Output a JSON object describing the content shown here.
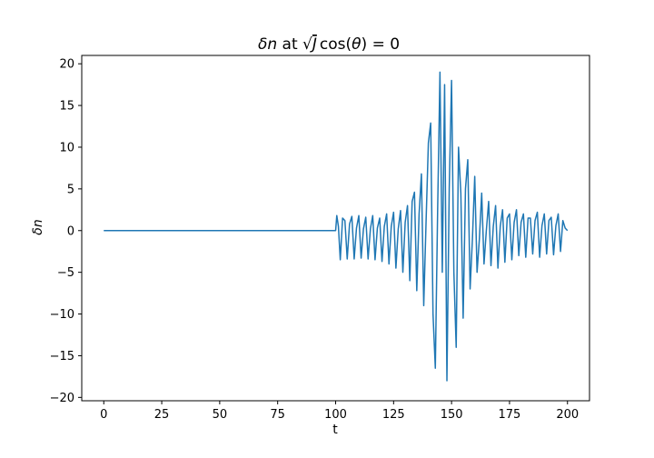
{
  "chart_data": {
    "type": "line",
    "title": "δn at √J cos(θ) = 0",
    "title_parts": {
      "var": "δn",
      "at": " at ",
      "sqrt_arg": "J",
      "cos": "cos(",
      "theta": "θ",
      "rest": ") = 0"
    },
    "xlabel": "t",
    "ylabel": "δn",
    "xlim": [
      -9.5,
      209.5
    ],
    "ylim": [
      -20.4,
      21.0
    ],
    "xticks": [
      0,
      25,
      50,
      75,
      100,
      125,
      150,
      175,
      200
    ],
    "yticks": [
      -20,
      -15,
      -10,
      -5,
      0,
      5,
      10,
      15,
      20
    ],
    "grid": false,
    "color": "#1f77b4",
    "series": [
      {
        "x": [
          0,
          100,
          100.5,
          101.2,
          102,
          103,
          104,
          105,
          106,
          107,
          108,
          109,
          110,
          111,
          112,
          113,
          114,
          115,
          116,
          117,
          118,
          119,
          120,
          121,
          122,
          123,
          124,
          125,
          126,
          127,
          128,
          129,
          130,
          131,
          132,
          133,
          134,
          135,
          136,
          137,
          138,
          139,
          140,
          141,
          142,
          143,
          144,
          145,
          146,
          147,
          148,
          149,
          150,
          151,
          152,
          153,
          154,
          155,
          156,
          157,
          158,
          159,
          160,
          161,
          162,
          163,
          164,
          165,
          166,
          167,
          168,
          169,
          170,
          171,
          172,
          173,
          174,
          175,
          176,
          177,
          178,
          179,
          180,
          181,
          182,
          183,
          184,
          185,
          186,
          187,
          188,
          189,
          190,
          191,
          192,
          193,
          194,
          195,
          196,
          197,
          198,
          199,
          200
        ],
        "y": [
          0,
          0,
          1.8,
          0.5,
          -3.5,
          1.5,
          1.2,
          -3.4,
          0.8,
          1.7,
          -3.4,
          0.3,
          1.8,
          -3.3,
          0.2,
          1.6,
          -3.4,
          0.2,
          1.8,
          -3.5,
          0.3,
          1.5,
          -3.7,
          0.5,
          2.0,
          -4.0,
          0.5,
          2.2,
          -4.5,
          0.2,
          2.4,
          -5.0,
          1.0,
          3.0,
          -6.0,
          3.5,
          4.6,
          -7.2,
          2.0,
          6.8,
          -9.0,
          1.0,
          10.5,
          12.9,
          -10.0,
          -16.5,
          2.5,
          19.0,
          -5.0,
          17.5,
          -18.0,
          5.0,
          18.0,
          -5.0,
          -14.0,
          10.0,
          4.5,
          -10.5,
          5.0,
          8.5,
          -7.0,
          -1.0,
          6.5,
          -5.0,
          -1.0,
          4.5,
          -4.0,
          0.0,
          3.5,
          -4.2,
          0.5,
          3.0,
          -4.5,
          0.5,
          2.5,
          -3.8,
          1.5,
          2.0,
          -3.5,
          1.0,
          2.5,
          -3.0,
          1.0,
          2.0,
          -3.2,
          1.5,
          1.5,
          -2.8,
          1.2,
          2.2,
          -3.2,
          0.6,
          2.0,
          -2.8,
          1.2,
          1.6,
          -2.9,
          0.6,
          2.0,
          -2.5,
          1.2,
          0.3,
          0.0
        ]
      }
    ]
  }
}
